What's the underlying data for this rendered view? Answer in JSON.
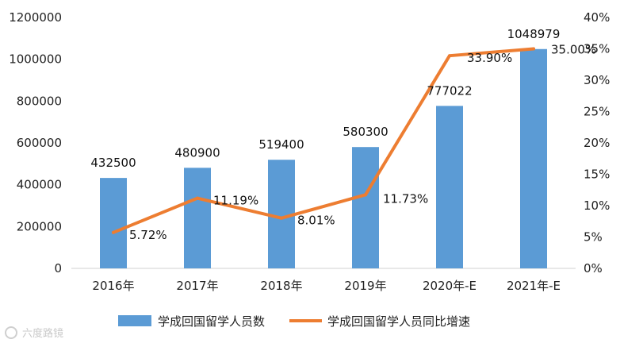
{
  "chart_data": {
    "type": "bar",
    "categories": [
      "2016年",
      "2017年",
      "2018年",
      "2019年",
      "2020年-E",
      "2021年-E"
    ],
    "series": [
      {
        "name": "学成回国留学人员数",
        "type": "bar",
        "axis": "left",
        "color": "#5b9bd5",
        "values": [
          432500,
          480900,
          519400,
          580300,
          777022,
          1048979
        ],
        "labels": [
          "432500",
          "480900",
          "519400",
          "580300",
          "777022",
          "1048979"
        ]
      },
      {
        "name": "学成回国留学人员同比增速",
        "type": "line",
        "axis": "right",
        "color": "#ed7d31",
        "values": [
          5.72,
          11.19,
          8.01,
          11.73,
          33.9,
          35.0
        ],
        "labels": [
          "5.72%",
          "11.19%",
          "8.01%",
          "11.73%",
          "33.90%",
          "35.00%"
        ]
      }
    ],
    "y_left": {
      "min": 0,
      "max": 1200000,
      "ticks": [
        0,
        200000,
        400000,
        600000,
        800000,
        1000000,
        1200000
      ],
      "tick_labels": [
        "0",
        "200000",
        "400000",
        "600000",
        "800000",
        "1000000",
        "1200000"
      ]
    },
    "y_right": {
      "min": 0,
      "max": 40,
      "ticks": [
        0,
        5,
        10,
        15,
        20,
        25,
        30,
        35,
        40
      ],
      "tick_labels": [
        "0%",
        "5%",
        "10%",
        "15%",
        "20%",
        "25%",
        "30%",
        "35%",
        "40%"
      ]
    },
    "grid": false,
    "legend_position": "bottom"
  },
  "watermark": {
    "text": "六度路镜"
  }
}
